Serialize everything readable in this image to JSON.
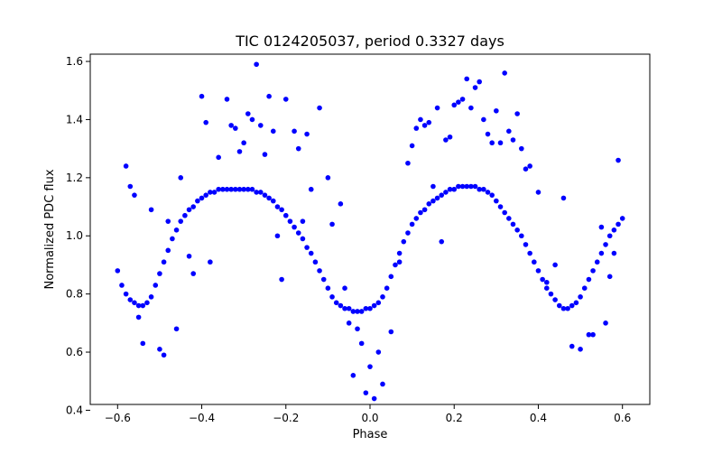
{
  "chart_data": {
    "type": "scatter",
    "title": "TIC 0124205037, period 0.3327 days",
    "xlabel": "Phase",
    "ylabel": "Normalized PDC flux",
    "xlim": [
      -0.665,
      0.665
    ],
    "ylim": [
      0.42,
      1.625
    ],
    "xticks": [
      -0.6,
      -0.4,
      -0.2,
      0.0,
      0.2,
      0.4,
      0.6
    ],
    "xtick_labels": [
      "−0.6",
      "−0.4",
      "−0.2",
      "0.0",
      "0.2",
      "0.4",
      "0.6"
    ],
    "yticks": [
      0.4,
      0.6,
      0.8,
      1.0,
      1.2,
      1.4,
      1.6
    ],
    "ytick_labels": [
      "0.4",
      "0.6",
      "0.8",
      "1.0",
      "1.2",
      "1.4",
      "1.6"
    ],
    "grid": false,
    "legend": "none",
    "marker_color": "#0000ff",
    "series": [
      {
        "x": [
          -0.6,
          -0.59,
          -0.58,
          -0.57,
          -0.56,
          -0.55,
          -0.54,
          -0.53,
          -0.52,
          -0.51,
          -0.5,
          -0.49,
          -0.48,
          -0.47,
          -0.46,
          -0.45,
          -0.44,
          -0.43,
          -0.42,
          -0.41,
          -0.4,
          -0.39,
          -0.38,
          -0.37,
          -0.36,
          -0.35,
          -0.34,
          -0.33,
          -0.32,
          -0.31,
          -0.3,
          -0.29,
          -0.28,
          -0.27,
          -0.26,
          -0.25,
          -0.24,
          -0.23,
          -0.22,
          -0.21,
          -0.2,
          -0.19,
          -0.18,
          -0.17,
          -0.16,
          -0.15,
          -0.14,
          -0.13,
          -0.12,
          -0.11,
          -0.1,
          -0.09,
          -0.08,
          -0.07,
          -0.06,
          -0.05,
          -0.04,
          -0.03,
          -0.02,
          -0.01,
          0.0,
          0.01,
          0.02,
          0.03,
          0.04,
          0.05,
          0.06,
          0.07,
          0.08,
          0.09,
          0.1,
          0.11,
          0.12,
          0.13,
          0.14,
          0.15,
          0.16,
          0.17,
          0.18,
          0.19,
          0.2,
          0.21,
          0.22,
          0.23,
          0.24,
          0.25,
          0.26,
          0.27,
          0.28,
          0.29,
          0.3,
          0.31,
          0.32,
          0.33,
          0.34,
          0.35,
          0.36,
          0.37,
          0.38,
          0.39,
          0.4,
          0.41,
          0.42,
          0.43,
          0.44,
          0.45,
          0.46,
          0.47,
          0.48,
          0.49,
          0.5,
          0.51,
          0.52,
          0.53,
          0.54,
          0.55,
          0.56,
          0.57,
          0.58,
          0.59,
          0.6
        ],
        "y": [
          0.88,
          0.83,
          0.8,
          0.78,
          0.77,
          0.76,
          0.76,
          0.77,
          0.79,
          0.83,
          0.87,
          0.91,
          0.95,
          0.99,
          1.02,
          1.05,
          1.07,
          1.09,
          1.1,
          1.12,
          1.13,
          1.14,
          1.15,
          1.15,
          1.16,
          1.16,
          1.16,
          1.16,
          1.16,
          1.16,
          1.16,
          1.16,
          1.16,
          1.15,
          1.15,
          1.14,
          1.13,
          1.12,
          1.1,
          1.09,
          1.07,
          1.05,
          1.03,
          1.01,
          0.99,
          0.96,
          0.94,
          0.91,
          0.88,
          0.85,
          0.82,
          0.79,
          0.77,
          0.76,
          0.75,
          0.75,
          0.74,
          0.74,
          0.74,
          0.75,
          0.75,
          0.76,
          0.77,
          0.79,
          0.82,
          0.86,
          0.9,
          0.94,
          0.98,
          1.01,
          1.04,
          1.06,
          1.08,
          1.09,
          1.11,
          1.12,
          1.13,
          1.14,
          1.15,
          1.16,
          1.16,
          1.17,
          1.17,
          1.17,
          1.17,
          1.17,
          1.16,
          1.16,
          1.15,
          1.14,
          1.12,
          1.1,
          1.08,
          1.06,
          1.04,
          1.02,
          1.0,
          0.97,
          0.94,
          0.91,
          0.88,
          0.85,
          0.82,
          0.8,
          0.78,
          0.76,
          0.75,
          0.75,
          0.76,
          0.77,
          0.79,
          0.82,
          0.85,
          0.88,
          0.91,
          0.94,
          0.97,
          1.0,
          1.02,
          1.04,
          1.06
        ]
      },
      {
        "x": [
          -0.58,
          -0.57,
          -0.56,
          -0.55,
          -0.54,
          -0.52,
          -0.5,
          -0.49,
          -0.48,
          -0.46,
          -0.45,
          -0.43,
          -0.42,
          -0.4,
          -0.39,
          -0.38,
          -0.36,
          -0.34,
          -0.33,
          -0.32,
          -0.31,
          -0.3,
          -0.29,
          -0.28,
          -0.27,
          -0.26,
          -0.25,
          -0.24,
          -0.23,
          -0.22,
          -0.21,
          -0.2,
          -0.18,
          -0.17,
          -0.16,
          -0.15,
          -0.14,
          -0.12,
          -0.1,
          -0.09,
          -0.07,
          -0.06,
          -0.05,
          -0.04,
          -0.03,
          -0.02,
          -0.01,
          0.0,
          0.01,
          0.02,
          0.03,
          0.05,
          0.07,
          0.09,
          0.1,
          0.11,
          0.12,
          0.13,
          0.14,
          0.15,
          0.16,
          0.17,
          0.18,
          0.19,
          0.2,
          0.21,
          0.22,
          0.23,
          0.24,
          0.25,
          0.26,
          0.27,
          0.28,
          0.29,
          0.3,
          0.31,
          0.32,
          0.33,
          0.34,
          0.35,
          0.36,
          0.37,
          0.38,
          0.4,
          0.42,
          0.44,
          0.46,
          0.48,
          0.5,
          0.52,
          0.53,
          0.55,
          0.56,
          0.57,
          0.58,
          0.59
        ],
        "y": [
          1.24,
          1.17,
          1.14,
          0.72,
          0.63,
          1.09,
          0.61,
          0.59,
          1.05,
          0.68,
          1.2,
          0.93,
          0.87,
          1.48,
          1.39,
          0.91,
          1.27,
          1.47,
          1.38,
          1.37,
          1.29,
          1.32,
          1.42,
          1.4,
          1.59,
          1.38,
          1.28,
          1.48,
          1.36,
          1.0,
          0.85,
          1.47,
          1.36,
          1.3,
          1.05,
          1.35,
          1.16,
          1.44,
          1.2,
          1.04,
          1.11,
          0.82,
          0.7,
          0.52,
          0.68,
          0.63,
          0.46,
          0.55,
          0.44,
          0.6,
          0.49,
          0.67,
          0.91,
          1.25,
          1.31,
          1.37,
          1.4,
          1.38,
          1.39,
          1.17,
          1.44,
          0.98,
          1.33,
          1.34,
          1.45,
          1.46,
          1.47,
          1.54,
          1.44,
          1.51,
          1.53,
          1.4,
          1.35,
          1.32,
          1.43,
          1.32,
          1.56,
          1.36,
          1.33,
          1.42,
          1.3,
          1.23,
          1.24,
          1.15,
          0.84,
          0.9,
          1.13,
          0.62,
          0.61,
          0.66,
          0.66,
          1.03,
          0.7,
          0.86,
          0.94,
          1.26
        ]
      }
    ]
  }
}
